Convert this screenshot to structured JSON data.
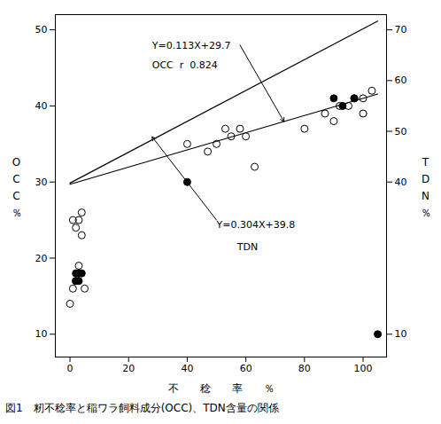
{
  "chart_data": {
    "type": "scatter",
    "xlabel": "不　　稔　　率　　％",
    "ylabel": "OCC％",
    "y2label": "TDN％",
    "caption": "図1　籾不稔率と稲ワラ飼料成分(OCC)、TDN含量の関係",
    "xlim": [
      -5,
      108
    ],
    "xticks": [
      0,
      20,
      40,
      60,
      80,
      100
    ],
    "ylim": [
      7,
      52
    ],
    "yticks": [
      10,
      20,
      30,
      40,
      50
    ],
    "y2lim": [
      5.5,
      73
    ],
    "y2ticks": [
      70,
      60,
      50,
      40,
      10
    ],
    "grid": false,
    "series": [
      {
        "type": "scatter",
        "marker": "open_circle",
        "color": "#000000",
        "x": [
          1,
          1,
          2,
          2,
          3,
          3,
          3,
          4,
          4,
          5,
          0,
          40,
          47,
          50,
          53,
          55,
          58,
          60,
          63,
          80,
          87,
          90,
          92,
          95,
          97,
          100,
          100,
          103
        ],
        "values": [
          25,
          16,
          24,
          17,
          25,
          19,
          18,
          23,
          26,
          16,
          14,
          35,
          34,
          35,
          37,
          36,
          37,
          36,
          32,
          37,
          39,
          38,
          40,
          40,
          41,
          39,
          41,
          42
        ]
      },
      {
        "type": "scatter",
        "marker": "circle",
        "color": "#000000",
        "x": [
          2,
          2,
          3,
          3,
          4,
          40,
          90,
          93,
          97
        ],
        "values": [
          18,
          17,
          18,
          17,
          18,
          30,
          41,
          40,
          41
        ]
      },
      {
        "type": "scatter",
        "marker": "circle",
        "color": "#000000",
        "axis": "y2",
        "x": [
          105
        ],
        "values": [
          10
        ]
      },
      {
        "type": "line",
        "color": "#000000",
        "x": [
          0,
          105
        ],
        "values": [
          29.7,
          41.565
        ]
      },
      {
        "type": "line",
        "color": "#000000",
        "axis": "y2",
        "x": [
          0,
          105
        ],
        "values": [
          39.8,
          71.72
        ]
      }
    ],
    "annotations": [
      {
        "text": "Y=0.113X+29.7",
        "x": 28,
        "y": 47.5
      },
      {
        "text": "OCC  r  0.824",
        "x": 28,
        "y": 45.0
      },
      {
        "text": "Y=0.304X+39.8",
        "x": 50,
        "y": 24
      },
      {
        "text": "TDN",
        "x": 57,
        "y": 21
      }
    ],
    "arrows": [
      {
        "x1": 58,
        "y1": 48,
        "x2": 73,
        "y2": 37.949
      },
      {
        "x1": 50,
        "y1": 25,
        "x2": 28,
        "y2": 35.946666666666665
      }
    ]
  }
}
